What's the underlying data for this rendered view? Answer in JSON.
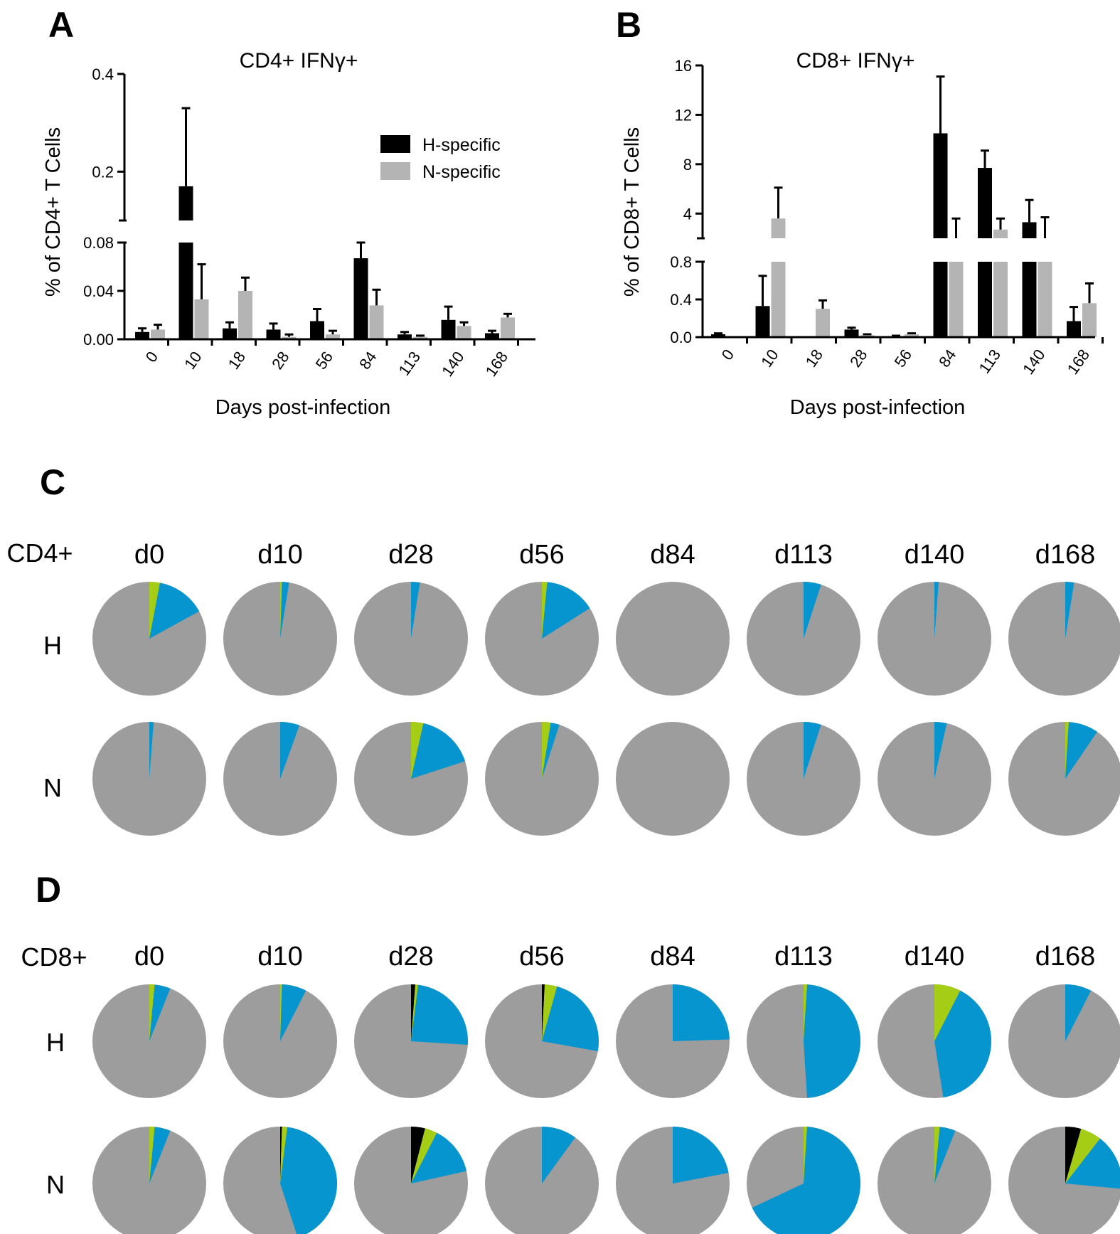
{
  "colors": {
    "h_bar": "#000000",
    "n_bar": "#b4b4b4",
    "pie_rest": "#9d9d9d",
    "pie_blue": "#0795d0",
    "pie_green": "#a6cd16",
    "pie_black": "#000000"
  },
  "panels": {
    "a_letter": "A",
    "b_letter": "B",
    "c_letter": "C",
    "d_letter": "D"
  },
  "chart_data": [
    {
      "id": "A",
      "type": "bar",
      "title": "CD4+ IFNγ+",
      "xlabel": "Days post-infection",
      "ylabel": "% of CD4+ T Cells",
      "categories": [
        "0",
        "10",
        "18",
        "28",
        "56",
        "84",
        "113",
        "140",
        "168"
      ],
      "y_axis_break": {
        "lower": [
          0,
          0.08
        ],
        "upper": [
          0.1,
          0.4
        ]
      },
      "yticks_lower": [
        "0.00",
        "0.04",
        "0.08"
      ],
      "yticks_upper": [
        "0.2",
        "0.4"
      ],
      "legend": [
        "H-specific",
        "N-specific"
      ],
      "series": [
        {
          "name": "H-specific",
          "values": [
            0.006,
            0.17,
            0.009,
            0.008,
            0.015,
            0.067,
            0.004,
            0.016,
            0.005
          ],
          "errors": [
            0.003,
            0.16,
            0.005,
            0.005,
            0.01,
            0.013,
            0.002,
            0.011,
            0.002
          ]
        },
        {
          "name": "N-specific",
          "values": [
            0.008,
            0.033,
            0.04,
            0.002,
            0.004,
            0.028,
            0.002,
            0.011,
            0.018
          ],
          "errors": [
            0.004,
            0.029,
            0.011,
            0.002,
            0.003,
            0.013,
            0.001,
            0.003,
            0.003
          ]
        }
      ]
    },
    {
      "id": "B",
      "type": "bar",
      "title": "CD8+ IFNγ+",
      "xlabel": "Days post-infection",
      "ylabel": "% of CD8+ T Cells",
      "categories": [
        "0",
        "10",
        "18",
        "28",
        "56",
        "84",
        "113",
        "140",
        "168"
      ],
      "y_axis_break": {
        "lower": [
          0,
          0.8
        ],
        "upper": [
          2,
          16
        ]
      },
      "yticks_lower": [
        "0.0",
        "0.4",
        "0.8"
      ],
      "yticks_upper": [
        "4",
        "8",
        "12",
        "16"
      ],
      "series": [
        {
          "name": "H-specific",
          "values": [
            0.03,
            0.33,
            0.0,
            0.08,
            0.01,
            10.5,
            7.7,
            3.3,
            0.17
          ],
          "errors": [
            0.01,
            0.32,
            0.0,
            0.02,
            0.005,
            4.6,
            1.4,
            1.8,
            0.15
          ]
        },
        {
          "name": "N-specific",
          "values": [
            0.0,
            3.6,
            0.3,
            0.02,
            0.03,
            2.0,
            2.7,
            2.0,
            0.36
          ],
          "errors": [
            0.0,
            2.5,
            0.09,
            0.01,
            0.01,
            1.6,
            0.9,
            1.7,
            0.21
          ]
        }
      ]
    }
  ],
  "pies": {
    "days": [
      "d0",
      "d10",
      "d28",
      "d56",
      "d84",
      "d113",
      "d140",
      "d168"
    ],
    "c": {
      "label": "CD4+",
      "rows": [
        {
          "label": "H",
          "slices": [
            {
              "green": 3,
              "blue": 14,
              "black": 0
            },
            {
              "green": 0.5,
              "blue": 2,
              "black": 0
            },
            {
              "green": 0,
              "blue": 2.5,
              "black": 0
            },
            {
              "green": 1.5,
              "blue": 14.5,
              "black": 0
            },
            {
              "green": 0,
              "blue": 0,
              "black": 0
            },
            {
              "green": 0,
              "blue": 5,
              "black": 0
            },
            {
              "green": 0,
              "blue": 1.2,
              "black": 0
            },
            {
              "green": 0,
              "blue": 2.5,
              "black": 0
            }
          ]
        },
        {
          "label": "N",
          "slices": [
            {
              "green": 0,
              "blue": 1.2,
              "black": 0
            },
            {
              "green": 0,
              "blue": 5.5,
              "black": 0
            },
            {
              "green": 3.5,
              "blue": 16.5,
              "black": 0
            },
            {
              "green": 2.5,
              "blue": 2.5,
              "black": 0
            },
            {
              "green": 0,
              "blue": 0,
              "black": 0
            },
            {
              "green": 0,
              "blue": 5,
              "black": 0
            },
            {
              "green": 0,
              "blue": 3.5,
              "black": 0
            },
            {
              "green": 1,
              "blue": 8.5,
              "black": 0
            }
          ]
        }
      ]
    },
    "d": {
      "label": "CD8+",
      "rows": [
        {
          "label": "H",
          "slices": [
            {
              "green": 1.5,
              "blue": 4.5,
              "black": 0
            },
            {
              "green": 0.5,
              "blue": 7,
              "black": 0
            },
            {
              "green": 0.8,
              "blue": 24,
              "black": 1.2
            },
            {
              "green": 3.5,
              "blue": 23.5,
              "black": 0.8
            },
            {
              "green": 0,
              "blue": 24.5,
              "black": 0
            },
            {
              "green": 1,
              "blue": 48,
              "black": 0
            },
            {
              "green": 7.5,
              "blue": 40,
              "black": 0
            },
            {
              "green": 0,
              "blue": 7.5,
              "black": 0
            }
          ]
        },
        {
          "label": "N",
          "slices": [
            {
              "green": 1.5,
              "blue": 4.5,
              "black": 0
            },
            {
              "green": 1.5,
              "blue": 43,
              "black": 0.5
            },
            {
              "green": 3.5,
              "blue": 14,
              "black": 4
            },
            {
              "green": 0,
              "blue": 10,
              "black": 0
            },
            {
              "green": 0,
              "blue": 22,
              "black": 0
            },
            {
              "green": 1,
              "blue": 67,
              "black": 0
            },
            {
              "green": 1.5,
              "blue": 4.5,
              "black": 0
            },
            {
              "green": 6,
              "blue": 16,
              "black": 4.5
            }
          ]
        }
      ]
    }
  }
}
